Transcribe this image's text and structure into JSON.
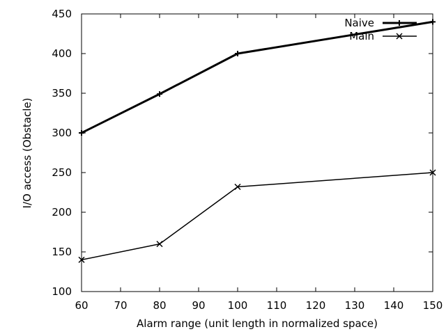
{
  "chart_data": {
    "type": "line",
    "title": "",
    "xlabel": "Alarm range (unit length in normalized space)",
    "ylabel": "I/O access (Obstacle)",
    "xlim": [
      60,
      150
    ],
    "ylim": [
      100,
      450
    ],
    "xticks": [
      60,
      70,
      80,
      90,
      100,
      110,
      120,
      130,
      140,
      150
    ],
    "yticks": [
      100,
      150,
      200,
      250,
      300,
      350,
      400,
      450
    ],
    "grid": false,
    "legend_position": "top-right",
    "series": [
      {
        "name": "Naive",
        "marker": "plus",
        "color": "#000000",
        "x": [
          60,
          80,
          100,
          150
        ],
        "y": [
          300,
          349,
          400,
          440
        ]
      },
      {
        "name": "Main",
        "marker": "cross",
        "color": "#000000",
        "x": [
          60,
          80,
          100,
          150
        ],
        "y": [
          140,
          160,
          232,
          250
        ]
      }
    ]
  }
}
